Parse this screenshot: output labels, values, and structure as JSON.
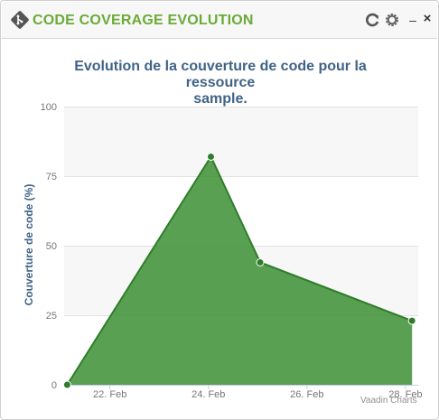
{
  "widget": {
    "title": "CODE COVERAGE EVOLUTION",
    "brand_color": "#6aab36",
    "icons": [
      "git-logo-icon",
      "refresh-icon",
      "gear-icon",
      "minimize-icon",
      "close-icon"
    ],
    "minimize_glyph": "–",
    "close_glyph": "×"
  },
  "chart_data": {
    "type": "area",
    "title": "Evolution de la couverture de code pour la ressource\nsample.",
    "ylabel": "Couverture de code (%)",
    "xlabel": "",
    "ylim": [
      0,
      100
    ],
    "yticks": [
      0,
      25,
      50,
      75,
      100
    ],
    "xticks": [
      "22. Feb",
      "24. Feb",
      "26. Feb",
      "28. Feb"
    ],
    "series": [
      {
        "x": [
          "2024-02-21T12:00",
          "2024-02-24T10:00",
          "2024-02-25T10:00",
          "2024-02-28T12:00"
        ],
        "values": [
          0,
          82,
          44,
          23
        ],
        "color": "#3d8f35"
      }
    ],
    "grid": true,
    "legend": "none",
    "credits": "Vaadin Charts"
  }
}
